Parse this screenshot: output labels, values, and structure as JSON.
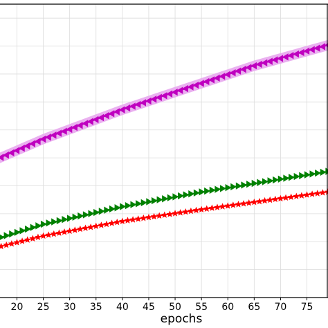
{
  "chart_data": {
    "type": "line",
    "xlabel": "epochs",
    "ylabel": "",
    "title": "",
    "xlim": [
      16,
      79
    ],
    "ylim": [
      0,
      1
    ],
    "grid": true,
    "x_ticks": [
      20,
      25,
      30,
      35,
      40,
      45,
      50,
      55,
      60,
      65,
      70,
      75
    ],
    "series": [
      {
        "color": "#bf00bf",
        "band_color": "#e8a8ee",
        "marker": "triangle-left",
        "x_start": 16,
        "x_end": 79,
        "points": 64,
        "values_at": [
          [
            16,
            0.47
          ],
          [
            25,
            0.54
          ],
          [
            40,
            0.64
          ],
          [
            55,
            0.73
          ],
          [
            65,
            0.79
          ],
          [
            79,
            0.86
          ]
        ],
        "band_halfwidth": 0.018
      },
      {
        "color": "#008000",
        "marker": "triangle-right",
        "x_start": 16,
        "x_end": 79,
        "points": 64,
        "values_at": [
          [
            16,
            0.2
          ],
          [
            25,
            0.25
          ],
          [
            40,
            0.31
          ],
          [
            55,
            0.36
          ],
          [
            79,
            0.43
          ]
        ]
      },
      {
        "color": "#ff0000",
        "marker": "star",
        "x_start": 16,
        "x_end": 79,
        "points": 64,
        "values_at": [
          [
            16,
            0.17
          ],
          [
            25,
            0.21
          ],
          [
            40,
            0.26
          ],
          [
            55,
            0.3
          ],
          [
            79,
            0.36
          ]
        ]
      }
    ]
  }
}
